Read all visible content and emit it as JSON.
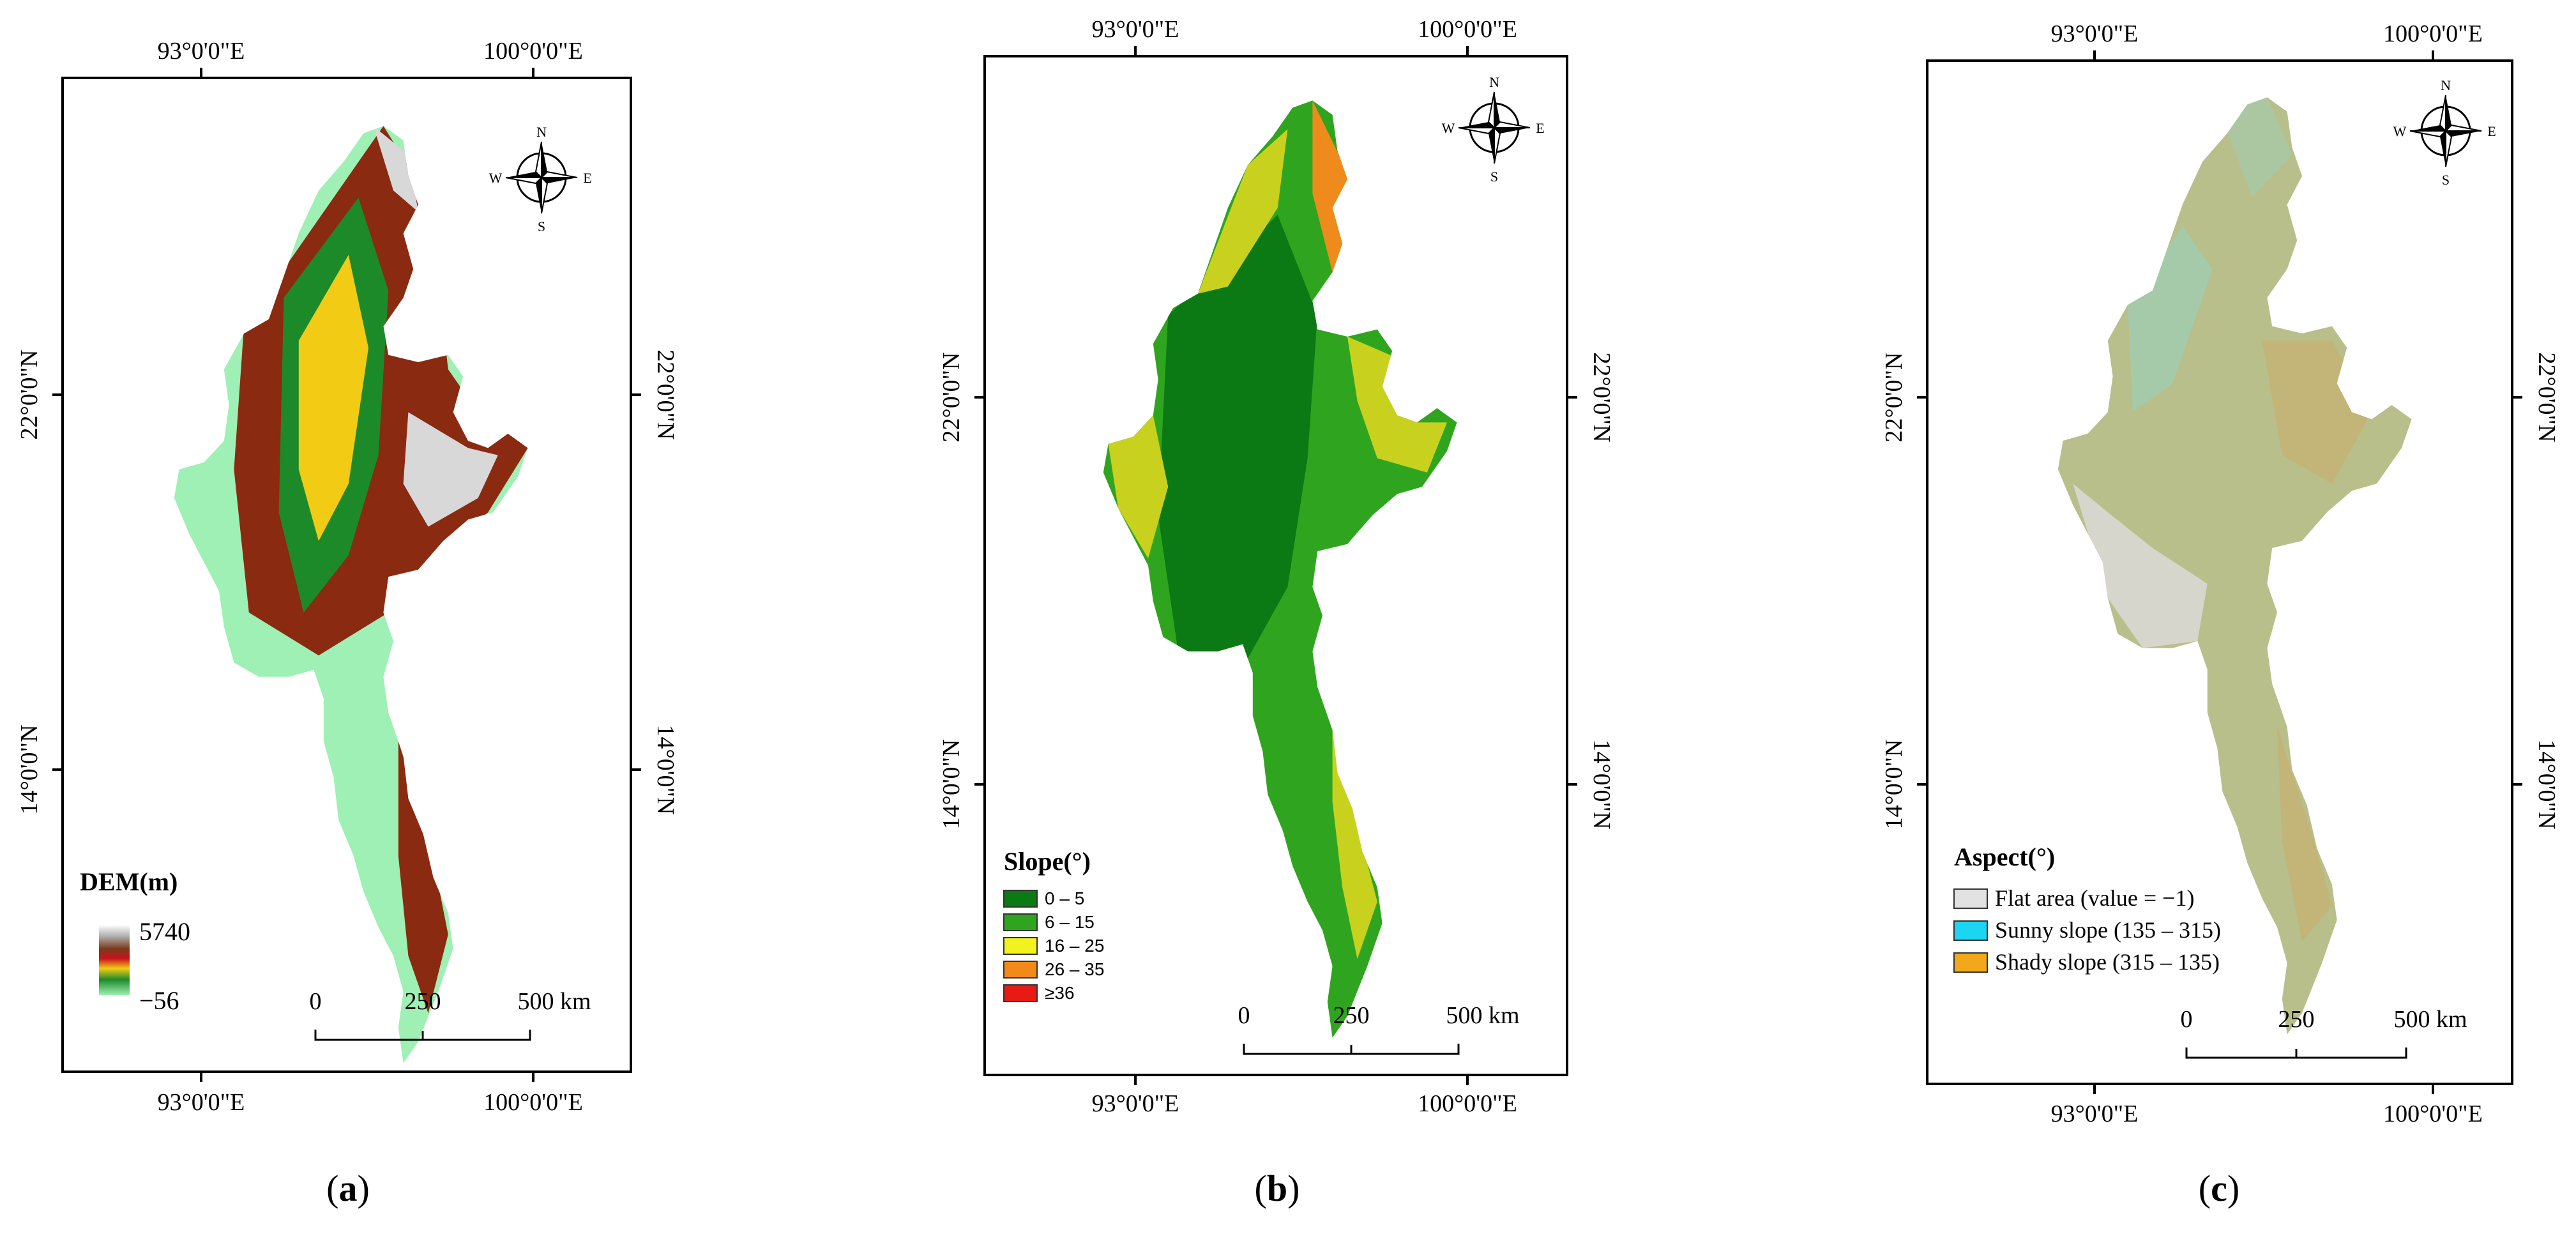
{
  "panels": [
    {
      "id": "a",
      "caption_letter": "a",
      "lon_labels": [
        "93°0'0\"E",
        "100°0'0\"E"
      ],
      "lat_labels": [
        "22°0'0\"N",
        "14°0'0\"N"
      ],
      "compass": {
        "n": "N",
        "s": "S",
        "e": "E",
        "w": "W"
      },
      "legend": {
        "title": "DEM(m)",
        "type": "gradient",
        "max_label": "5740",
        "min_label": "−56",
        "gradient_colors": [
          "#ffffff",
          "#b0b0b0",
          "#7a3a1a",
          "#c8121e",
          "#f2cc14",
          "#1d8a2a",
          "#9ef0b4"
        ]
      },
      "scalebar": {
        "ticks": [
          "0",
          "250",
          "500 km"
        ]
      }
    },
    {
      "id": "b",
      "caption_letter": "b",
      "lon_labels": [
        "93°0'0\"E",
        "100°0'0\"E"
      ],
      "lat_labels": [
        "22°0'0\"N",
        "14°0'0\"N"
      ],
      "compass": {
        "n": "N",
        "s": "S",
        "e": "E",
        "w": "W"
      },
      "legend": {
        "title": "Slope(°)",
        "type": "classes",
        "classes": [
          {
            "label": "0 – 5",
            "color": "#0a7a12"
          },
          {
            "label": "6 – 15",
            "color": "#2fa51f"
          },
          {
            "label": "16 – 25",
            "color": "#f2f21e"
          },
          {
            "label": "26 – 35",
            "color": "#f28a1a"
          },
          {
            "label": "≥36",
            "color": "#e81a14"
          }
        ]
      },
      "scalebar": {
        "ticks": [
          "0",
          "250",
          "500 km"
        ]
      }
    },
    {
      "id": "c",
      "caption_letter": "c",
      "lon_labels": [
        "93°0'0\"E",
        "100°0'0\"E"
      ],
      "lat_labels": [
        "22°0'0\"N",
        "14°0'0\"N"
      ],
      "compass": {
        "n": "N",
        "s": "S",
        "e": "E",
        "w": "W"
      },
      "legend": {
        "title": "Aspect(°)",
        "type": "classes",
        "classes": [
          {
            "label": "Flat area (value = −1)",
            "color": "#e2e2e2"
          },
          {
            "label": "Sunny slope (135 – 315)",
            "color": "#1ad6f2"
          },
          {
            "label": "Shady slope (315 – 135)",
            "color": "#f2a81a"
          }
        ]
      },
      "scalebar": {
        "ticks": [
          "0",
          "250",
          "500 km"
        ]
      }
    }
  ],
  "map_colors": {
    "dem_lowland": "#9ef0b4",
    "dem_mid": "#1d8a2a",
    "dem_hill": "#f2cc14",
    "dem_high": "#8a2a10",
    "dem_peak": "#d8d8d8",
    "slope_flat": "#0b7a14",
    "slope_low": "#2fa51f",
    "slope_mid": "#c8d21e",
    "slope_high": "#ef8a1c",
    "aspect_base": "#b8bf8a",
    "aspect_flat": "#d6d6cc",
    "aspect_sunny": "#8fd6cf",
    "aspect_shady": "#d2a85a"
  }
}
